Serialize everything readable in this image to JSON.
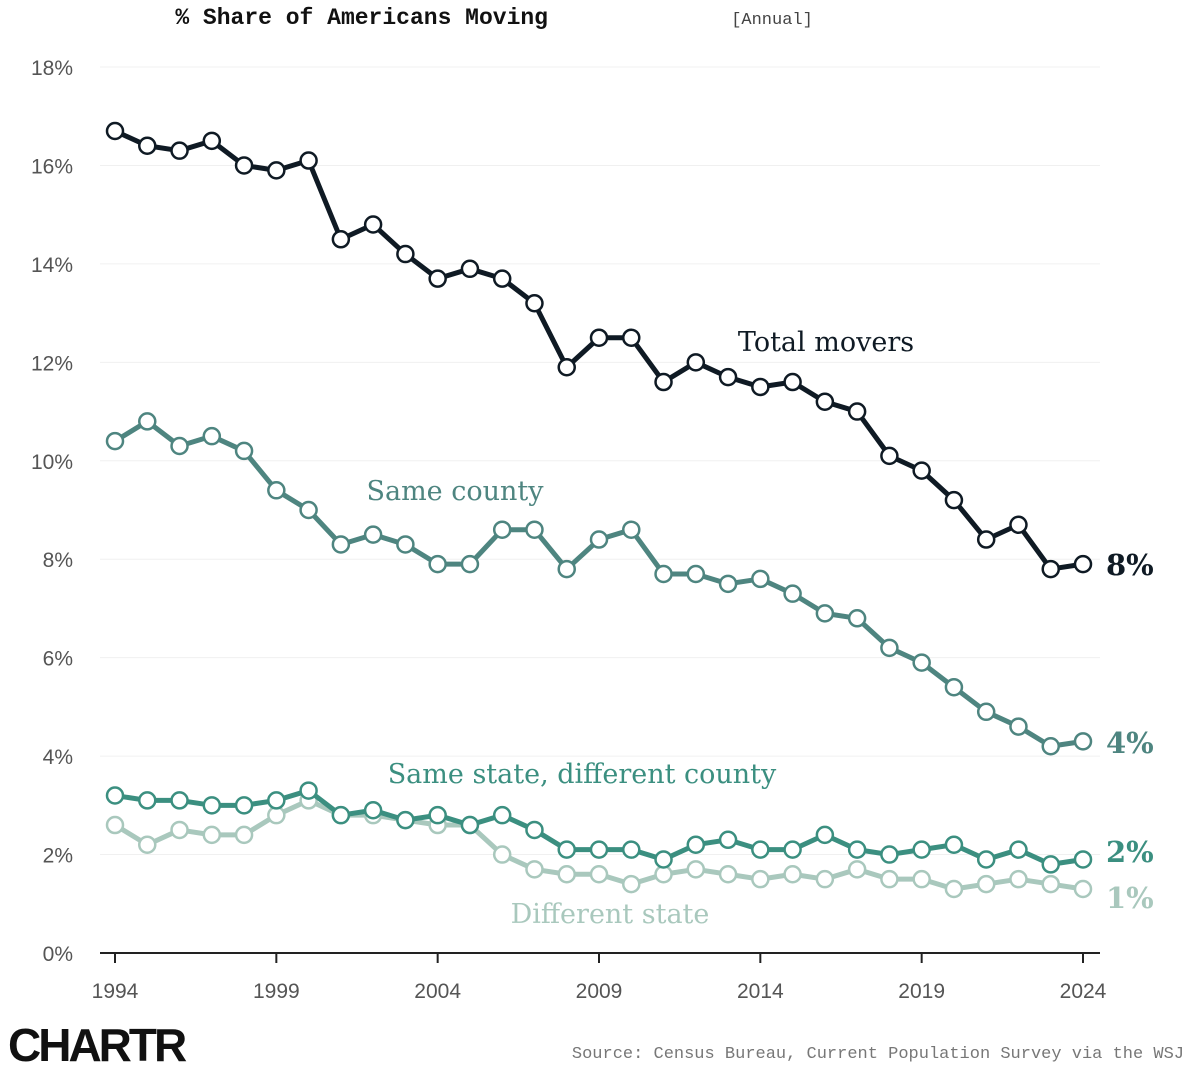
{
  "chart_data": {
    "type": "line",
    "title": "% Share of Americans Moving",
    "subtitle": "[Annual]",
    "xlabel": "",
    "ylabel": "",
    "ylim": [
      0,
      18
    ],
    "xlim": [
      1994,
      2024
    ],
    "grid": true,
    "y_ticks": [
      0,
      2,
      4,
      6,
      8,
      10,
      12,
      14,
      16,
      18
    ],
    "y_tick_labels": [
      "0%",
      "2%",
      "4%",
      "6%",
      "8%",
      "10%",
      "12%",
      "14%",
      "16%",
      "18%"
    ],
    "x_ticks": [
      1994,
      1999,
      2004,
      2009,
      2014,
      2019,
      2024
    ],
    "x_tick_labels": [
      "1994",
      "1999",
      "2004",
      "2009",
      "2014",
      "2019",
      "2024"
    ],
    "x": [
      1994,
      1995,
      1996,
      1997,
      1998,
      1999,
      2000,
      2001,
      2002,
      2003,
      2004,
      2005,
      2006,
      2007,
      2008,
      2009,
      2010,
      2011,
      2012,
      2013,
      2014,
      2015,
      2016,
      2017,
      2018,
      2019,
      2020,
      2021,
      2022,
      2023,
      2024
    ],
    "series": [
      {
        "name": "Total movers",
        "color": "#0f1a24",
        "end_label": "8%",
        "values": [
          16.7,
          16.4,
          16.3,
          16.5,
          16.0,
          15.9,
          16.1,
          14.5,
          14.8,
          14.2,
          13.7,
          13.9,
          13.7,
          13.2,
          11.9,
          12.5,
          12.5,
          11.6,
          12.0,
          11.7,
          11.5,
          11.6,
          11.2,
          11.0,
          10.1,
          9.8,
          9.2,
          8.4,
          8.7,
          7.8,
          7.9
        ]
      },
      {
        "name": "Same county",
        "color": "#4e8580",
        "end_label": "4%",
        "values": [
          10.4,
          10.8,
          10.3,
          10.5,
          10.2,
          9.4,
          9.0,
          8.3,
          8.5,
          8.3,
          7.9,
          7.9,
          8.6,
          8.6,
          7.8,
          8.4,
          8.6,
          7.7,
          7.7,
          7.5,
          7.6,
          7.3,
          6.9,
          6.8,
          6.2,
          5.9,
          5.4,
          4.9,
          4.6,
          4.2,
          4.3
        ]
      },
      {
        "name": "Same state, different county",
        "color": "#3b8f80",
        "end_label": "2%",
        "values": [
          3.2,
          3.1,
          3.1,
          3.0,
          3.0,
          3.1,
          3.3,
          2.8,
          2.9,
          2.7,
          2.8,
          2.6,
          2.8,
          2.5,
          2.1,
          2.1,
          2.1,
          1.9,
          2.2,
          2.3,
          2.1,
          2.1,
          2.4,
          2.1,
          2.0,
          2.1,
          2.2,
          1.9,
          2.1,
          1.8,
          1.9
        ]
      },
      {
        "name": "Different state",
        "color": "#a9c8bd",
        "end_label": "1%",
        "values": [
          2.6,
          2.2,
          2.5,
          2.4,
          2.4,
          2.8,
          3.1,
          2.8,
          2.8,
          2.7,
          2.6,
          2.6,
          2.0,
          1.7,
          1.6,
          1.6,
          1.4,
          1.6,
          1.7,
          1.6,
          1.5,
          1.6,
          1.5,
          1.7,
          1.5,
          1.5,
          1.3,
          1.4,
          1.5,
          1.4,
          1.3
        ]
      }
    ]
  },
  "source": "Source: Census Bureau, Current Population Survey via the WSJ",
  "logo": "CHARTR"
}
